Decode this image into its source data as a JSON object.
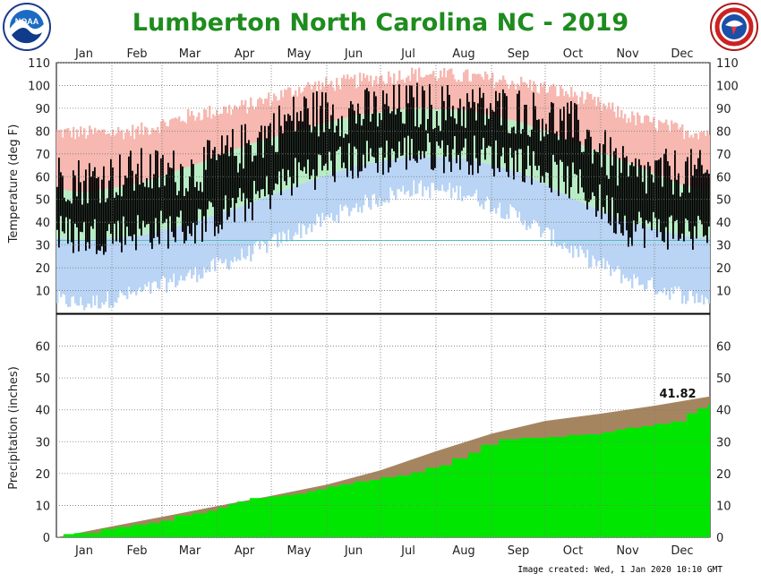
{
  "title": "Lumberton North Carolina NC - 2019",
  "credit": "Image created: Wed, 1 Jan 2020 10:10 GMT",
  "colors": {
    "title": "#1e8c1e",
    "record_high": "#f6b8b0",
    "normal_band": "#b8ecc4",
    "record_low": "#b9d4f4",
    "actual": "#000000",
    "precip_actual": "#00e600",
    "precip_normal": "#a58560",
    "freeze_line": "#4fbfc0"
  },
  "chart_data": [
    {
      "type": "bar",
      "name": "temperature",
      "ylabel": "Temperature (deg F)",
      "ylim": [
        0,
        110
      ],
      "yticks": [
        10,
        20,
        30,
        40,
        50,
        60,
        70,
        80,
        90,
        100,
        110
      ],
      "months": [
        "Jan",
        "Feb",
        "Mar",
        "Apr",
        "May",
        "Jun",
        "Jul",
        "Aug",
        "Sep",
        "Oct",
        "Nov",
        "Dec"
      ],
      "grid": true,
      "reference_line": 32,
      "monthly_profile": {
        "record_high": [
          79,
          80,
          87,
          91,
          99,
          102,
          105,
          104,
          101,
          96,
          86,
          80
        ],
        "normal_high": [
          53,
          57,
          65,
          74,
          81,
          87,
          90,
          89,
          84,
          75,
          66,
          56
        ],
        "normal_low": [
          32,
          34,
          40,
          48,
          57,
          65,
          69,
          68,
          62,
          50,
          40,
          34
        ],
        "record_low": [
          4,
          9,
          17,
          26,
          37,
          47,
          55,
          53,
          42,
          27,
          15,
          8
        ],
        "actual_high": [
          58,
          62,
          62,
          74,
          88,
          88,
          91,
          90,
          89,
          82,
          60,
          62
        ],
        "actual_low": [
          34,
          36,
          38,
          48,
          62,
          67,
          71,
          70,
          67,
          57,
          38,
          36
        ]
      }
    },
    {
      "type": "area",
      "name": "precipitation",
      "ylabel": "Precipitation (inches)",
      "ylim": [
        0,
        70
      ],
      "yticks": [
        0,
        10,
        20,
        30,
        40,
        50,
        60
      ],
      "months": [
        "Jan",
        "Feb",
        "Mar",
        "Apr",
        "May",
        "Jun",
        "Jul",
        "Aug",
        "Sep",
        "Oct",
        "Nov",
        "Dec"
      ],
      "grid": true,
      "series": [
        {
          "name": "normal",
          "x": [
            0,
            31,
            59,
            90,
            120,
            151,
            181,
            212,
            243,
            273,
            304,
            334,
            365
          ],
          "values": [
            0,
            3.4,
            6.4,
            9.8,
            13.0,
            16.5,
            21.0,
            27.0,
            32.5,
            36.5,
            38.8,
            41.3,
            44.2
          ]
        },
        {
          "name": "actual",
          "x": [
            0,
            4,
            10,
            25,
            33,
            42,
            51,
            58,
            66,
            76,
            84,
            90,
            96,
            101,
            108,
            118,
            126,
            133,
            140,
            145,
            151,
            158,
            166,
            175,
            181,
            190,
            198,
            206,
            214,
            221,
            230,
            237,
            247,
            259,
            274,
            285,
            294,
            305,
            312,
            318,
            327,
            334,
            343,
            352,
            358,
            364,
            365
          ],
          "values": [
            0,
            1.0,
            1.3,
            2.6,
            3.2,
            3.9,
            4.5,
            5.2,
            6.8,
            7.5,
            8.3,
            9.3,
            10.5,
            11.2,
            12.3,
            12.8,
            13.2,
            13.6,
            14.4,
            15.0,
            15.9,
            16.6,
            17.5,
            18.0,
            18.8,
            19.4,
            20.4,
            21.8,
            22.6,
            24.7,
            26.5,
            29.0,
            30.8,
            31.2,
            31.5,
            32.1,
            32.3,
            33.0,
            33.8,
            34.4,
            34.9,
            35.6,
            36.3,
            38.9,
            40.5,
            41.8,
            41.82
          ]
        }
      ],
      "annotation": "41.82"
    }
  ]
}
